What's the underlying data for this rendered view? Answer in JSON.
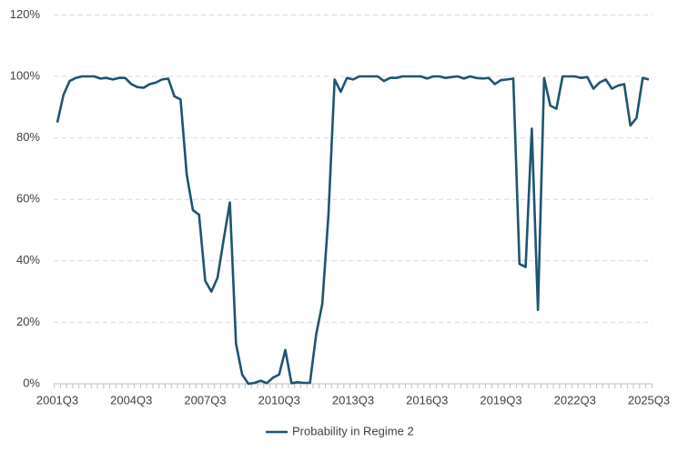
{
  "chart_data": {
    "type": "line",
    "categories": [
      "2001Q3",
      null,
      null,
      null,
      null,
      null,
      null,
      null,
      null,
      null,
      null,
      null,
      "2004Q3",
      null,
      null,
      null,
      null,
      null,
      null,
      null,
      null,
      null,
      null,
      null,
      "2007Q3",
      null,
      null,
      null,
      null,
      null,
      null,
      null,
      null,
      null,
      null,
      null,
      "2010Q3",
      null,
      null,
      null,
      null,
      null,
      null,
      null,
      null,
      null,
      null,
      null,
      "2013Q3",
      null,
      null,
      null,
      null,
      null,
      null,
      null,
      null,
      null,
      null,
      null,
      "2016Q3",
      null,
      null,
      null,
      null,
      null,
      null,
      null,
      null,
      null,
      null,
      null,
      "2019Q3",
      null,
      null,
      null,
      null,
      null,
      null,
      null,
      null,
      null,
      null,
      null,
      "2022Q3",
      null,
      null,
      null,
      null,
      null,
      null,
      null,
      null,
      null,
      null,
      null,
      "2025Q3"
    ],
    "series": [
      {
        "name": "Probability in Regime 2",
        "color": "#1d5571",
        "values": [
          85,
          94,
          98.5,
          99.5,
          100,
          100,
          100,
          99.3,
          99.5,
          99,
          99.5,
          99.5,
          97.5,
          96.5,
          96.3,
          97.5,
          98,
          99,
          99.3,
          93.5,
          92.5,
          68,
          56.5,
          55,
          33.5,
          30,
          34.5,
          47,
          59,
          13,
          3,
          0,
          0.3,
          1,
          0.2,
          2,
          3,
          11,
          0.2,
          0.5,
          0.3,
          0.3,
          16,
          26,
          55,
          99,
          95,
          99.5,
          99,
          100,
          100,
          100,
          100,
          98.5,
          99.5,
          99.5,
          100,
          100,
          100,
          100,
          99.3,
          100,
          100,
          99.5,
          99.8,
          100,
          99.3,
          100,
          99.5,
          99.3,
          99.5,
          97.5,
          98.8,
          99,
          99.3,
          39,
          38,
          83,
          24,
          99.5,
          90.5,
          89.5,
          100,
          100,
          100,
          99.5,
          99.8,
          96,
          98,
          99,
          96,
          97,
          97.5,
          84,
          86.5,
          99.5,
          99
        ]
      }
    ],
    "ylim": [
      0,
      120
    ],
    "yticks": [
      {
        "value": 0,
        "label": "0%"
      },
      {
        "value": 20,
        "label": "20%"
      },
      {
        "value": 40,
        "label": "40%"
      },
      {
        "value": 60,
        "label": "60%"
      },
      {
        "value": 80,
        "label": "80%"
      },
      {
        "value": 100,
        "label": "100%"
      },
      {
        "value": 120,
        "label": "120%"
      }
    ],
    "grid": true,
    "legend": "bottom"
  }
}
